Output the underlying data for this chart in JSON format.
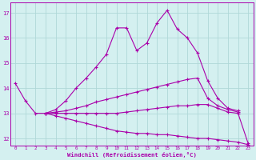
{
  "xlabel": "Windchill (Refroidissement éolien,°C)",
  "background_color": "#d4f0f0",
  "grid_color": "#b0d8d8",
  "line_color": "#aa00aa",
  "xlim": [
    -0.5,
    23.5
  ],
  "ylim": [
    11.7,
    17.4
  ],
  "yticks": [
    12,
    13,
    14,
    15,
    16,
    17
  ],
  "xticks": [
    0,
    1,
    2,
    3,
    4,
    5,
    6,
    7,
    8,
    9,
    10,
    11,
    12,
    13,
    14,
    15,
    16,
    17,
    18,
    19,
    20,
    21,
    22,
    23
  ],
  "series": [
    {
      "x": [
        0,
        1,
        2,
        3,
        4,
        5,
        6,
        7,
        8,
        9,
        10,
        11,
        12,
        13,
        14,
        15,
        16,
        17,
        18,
        19,
        20,
        21,
        22
      ],
      "y": [
        14.2,
        13.5,
        13.0,
        13.0,
        13.15,
        13.5,
        14.0,
        14.4,
        14.85,
        15.35,
        16.4,
        16.4,
        15.5,
        15.8,
        16.6,
        17.1,
        16.35,
        16.0,
        15.4,
        14.3,
        13.6,
        13.2,
        13.1
      ]
    },
    {
      "x": [
        3,
        4,
        5,
        6,
        7,
        8,
        9,
        10,
        11,
        12,
        13,
        14,
        15,
        16,
        17,
        18,
        19,
        20,
        21,
        22
      ],
      "y": [
        13.0,
        13.05,
        13.1,
        13.2,
        13.3,
        13.45,
        13.55,
        13.65,
        13.75,
        13.85,
        13.95,
        14.05,
        14.15,
        14.25,
        14.35,
        14.4,
        13.6,
        13.3,
        13.15,
        13.05
      ]
    },
    {
      "x": [
        3,
        4,
        5,
        6,
        7,
        8,
        9,
        10,
        11,
        12,
        13,
        14,
        15,
        16,
        17,
        18,
        19,
        20,
        21,
        22,
        23
      ],
      "y": [
        13.0,
        13.0,
        13.0,
        13.0,
        13.0,
        13.0,
        13.0,
        13.0,
        13.05,
        13.1,
        13.15,
        13.2,
        13.25,
        13.3,
        13.3,
        13.35,
        13.35,
        13.2,
        13.05,
        13.0,
        11.8
      ]
    },
    {
      "x": [
        3,
        4,
        5,
        6,
        7,
        8,
        9,
        10,
        11,
        12,
        13,
        14,
        15,
        16,
        17,
        18,
        19,
        20,
        21,
        22,
        23
      ],
      "y": [
        13.0,
        12.9,
        12.8,
        12.7,
        12.6,
        12.5,
        12.4,
        12.3,
        12.25,
        12.2,
        12.2,
        12.15,
        12.15,
        12.1,
        12.05,
        12.0,
        12.0,
        11.95,
        11.9,
        11.85,
        11.75
      ]
    }
  ]
}
